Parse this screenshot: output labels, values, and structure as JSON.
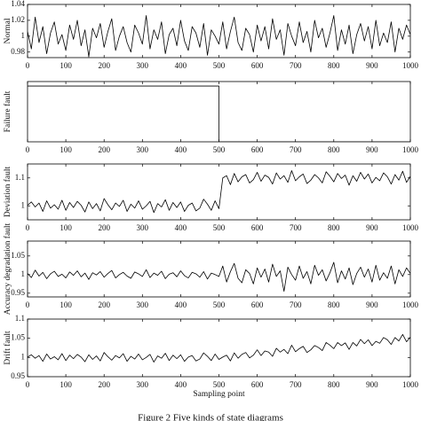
{
  "chart_data": [
    {
      "type": "line",
      "ylabel": "Normal",
      "color": "#000000",
      "xlim": [
        0,
        1000
      ],
      "ylim": [
        0.973,
        1.04
      ],
      "xticks": [
        0,
        100,
        200,
        300,
        400,
        500,
        600,
        700,
        800,
        900,
        1000
      ],
      "yticks": [
        0.98,
        1,
        1.02,
        1.04
      ],
      "x": [
        0,
        10,
        20,
        30,
        40,
        50,
        60,
        70,
        80,
        90,
        100,
        110,
        120,
        130,
        140,
        150,
        160,
        170,
        180,
        190,
        200,
        210,
        220,
        230,
        240,
        250,
        260,
        270,
        280,
        290,
        300,
        310,
        320,
        330,
        340,
        350,
        360,
        370,
        380,
        390,
        400,
        410,
        420,
        430,
        440,
        450,
        460,
        470,
        480,
        490,
        500,
        510,
        520,
        530,
        540,
        550,
        560,
        570,
        580,
        590,
        600,
        610,
        620,
        630,
        640,
        650,
        660,
        670,
        680,
        690,
        700,
        710,
        720,
        730,
        740,
        750,
        760,
        770,
        780,
        790,
        800,
        810,
        820,
        830,
        840,
        850,
        860,
        870,
        880,
        890,
        900,
        910,
        920,
        930,
        940,
        950,
        960,
        970,
        980,
        990,
        1000
      ],
      "values": [
        1.006,
        0.984,
        1.024,
        0.992,
        1.012,
        0.978,
        1.004,
        1.018,
        0.99,
        1.002,
        0.982,
        1.014,
        0.996,
        1.02,
        0.988,
        1.008,
        0.974,
        1.01,
        0.998,
        1.016,
        0.986,
        1.006,
        1.022,
        0.982,
        1,
        1.012,
        0.992,
        0.98,
        1.014,
        1.004,
        0.99,
        1.026,
        0.984,
        1.008,
        0.996,
        1.018,
        0.978,
        1.002,
        1.01,
        0.988,
        1.02,
        0.994,
        0.982,
        1.012,
        1.004,
        0.986,
        1.016,
        0.976,
        1.008,
        1,
        0.99,
        1.018,
        0.984,
        1.006,
        1.024,
        0.992,
        0.982,
        1.01,
        1.002,
        0.98,
        1.014,
        0.994,
        1.012,
        0.984,
        1.022,
        0.996,
        1.008,
        0.976,
        1.016,
        1,
        0.988,
        1.018,
        0.992,
        1.006,
        0.98,
        1.02,
        0.998,
        1.01,
        0.986,
        1.004,
        1.026,
        0.982,
        1.008,
        0.99,
        1.014,
        0.978,
        1.002,
        1.016,
        0.994,
        1.012,
        0.984,
        1.02,
        0.988,
        1.004,
        0.992,
        1.018,
        0.98,
        1.01,
        0.996,
        1.014,
        1.002
      ]
    },
    {
      "type": "line",
      "ylabel": "Failure fault",
      "color": "#000000",
      "xlim": [
        0,
        1000
      ],
      "ylim": [
        0,
        1.08
      ],
      "xticks": [
        0,
        100,
        200,
        300,
        400,
        500,
        600,
        700,
        800,
        900,
        1000
      ],
      "x": [
        0,
        500,
        500,
        1000
      ],
      "values": [
        1,
        1,
        0,
        0
      ]
    },
    {
      "type": "line",
      "ylabel": "Deviation fault",
      "color": "#000000",
      "xlim": [
        0,
        1000
      ],
      "ylim": [
        0.95,
        1.15
      ],
      "xticks": [
        0,
        100,
        200,
        300,
        400,
        500,
        600,
        700,
        800,
        900,
        1000
      ],
      "yticks": [
        1,
        1.1
      ],
      "x": [
        0,
        10,
        20,
        30,
        40,
        50,
        60,
        70,
        80,
        90,
        100,
        110,
        120,
        130,
        140,
        150,
        160,
        170,
        180,
        190,
        200,
        210,
        220,
        230,
        240,
        250,
        260,
        270,
        280,
        290,
        300,
        310,
        320,
        330,
        340,
        350,
        360,
        370,
        380,
        390,
        400,
        410,
        420,
        430,
        440,
        450,
        460,
        470,
        480,
        490,
        500,
        510,
        520,
        530,
        540,
        550,
        560,
        570,
        580,
        590,
        600,
        610,
        620,
        630,
        640,
        650,
        660,
        670,
        680,
        690,
        700,
        710,
        720,
        730,
        740,
        750,
        760,
        770,
        780,
        790,
        800,
        810,
        820,
        830,
        840,
        850,
        860,
        870,
        880,
        890,
        900,
        910,
        920,
        930,
        940,
        950,
        960,
        970,
        980,
        990,
        1000
      ],
      "values": [
        1.002,
        1.014,
        0.996,
        1.01,
        0.98,
        1.018,
        0.992,
        1.004,
        0.988,
        1.02,
        0.984,
        1.012,
        0.994,
        1.016,
        1.002,
        0.978,
        1.014,
        0.99,
        1.008,
        0.982,
        1.026,
        1.004,
        0.986,
        1.01,
        0.998,
        1.02,
        0.98,
        1.006,
        0.992,
        1.018,
        0.988,
        1,
        1.016,
        0.976,
        1.008,
        0.996,
        1.022,
        0.984,
        1.012,
        0.994,
        1.014,
        0.98,
        1.002,
        1.01,
        0.982,
        0.992,
        1.024,
        1.006,
        0.984,
        1.018,
        0.99,
        1.1,
        1.108,
        1.076,
        1.116,
        1.086,
        1.104,
        1.112,
        1.082,
        1.094,
        1.12,
        1.088,
        1.11,
        1.102,
        1.078,
        1.118,
        1.096,
        1.108,
        1.084,
        1.126,
        1.09,
        1.104,
        1.114,
        1.08,
        1.092,
        1.112,
        1.1,
        1.082,
        1.122,
        1.106,
        1.086,
        1.116,
        1.098,
        1.11,
        1.074,
        1.108,
        1.088,
        1.12,
        1.096,
        1.114,
        1.082,
        1.102,
        1.09,
        1.118,
        1.104,
        1.078,
        1.112,
        1.092,
        1.124,
        1.084,
        1.106
      ]
    },
    {
      "type": "line",
      "ylabel": "Accuracy degradation fault",
      "color": "#000000",
      "xlim": [
        0,
        1000
      ],
      "ylim": [
        0.94,
        1.09
      ],
      "xticks": [
        0,
        100,
        200,
        300,
        400,
        500,
        600,
        700,
        800,
        900,
        1000
      ],
      "yticks": [
        0.95,
        1,
        1.05
      ],
      "x": [
        0,
        10,
        20,
        30,
        40,
        50,
        60,
        70,
        80,
        90,
        100,
        110,
        120,
        130,
        140,
        150,
        160,
        170,
        180,
        190,
        200,
        210,
        220,
        230,
        240,
        250,
        260,
        270,
        280,
        290,
        300,
        310,
        320,
        330,
        340,
        350,
        360,
        370,
        380,
        390,
        400,
        410,
        420,
        430,
        440,
        450,
        460,
        470,
        480,
        490,
        500,
        510,
        520,
        530,
        540,
        550,
        560,
        570,
        580,
        590,
        600,
        610,
        620,
        630,
        640,
        650,
        660,
        670,
        680,
        690,
        700,
        710,
        720,
        730,
        740,
        750,
        760,
        770,
        780,
        790,
        800,
        810,
        820,
        830,
        840,
        850,
        860,
        870,
        880,
        890,
        900,
        910,
        920,
        930,
        940,
        950,
        960,
        970,
        980,
        990,
        1000
      ],
      "values": [
        1.003,
        0.992,
        1.012,
        0.996,
        1.006,
        0.989,
        1.002,
        1.009,
        0.995,
        1.001,
        0.991,
        1.007,
        0.998,
        1.01,
        0.994,
        1.004,
        0.987,
        1.005,
        0.999,
        1.008,
        0.993,
        1.003,
        1.011,
        0.991,
        1,
        1.006,
        0.996,
        0.99,
        1.007,
        1.002,
        0.995,
        1.013,
        0.992,
        1.004,
        0.998,
        1.009,
        0.989,
        1.001,
        1.005,
        0.994,
        1.01,
        0.997,
        0.991,
        1.006,
        1.002,
        0.993,
        1.008,
        0.988,
        1.004,
        1,
        0.995,
        1.023,
        0.98,
        1.008,
        1.03,
        0.99,
        0.978,
        1.013,
        1.003,
        0.975,
        1.018,
        0.993,
        1.015,
        0.98,
        1.028,
        0.995,
        1.01,
        0.955,
        1.02,
        1,
        0.985,
        1.023,
        0.99,
        1.008,
        0.975,
        1.025,
        0.998,
        1.013,
        0.983,
        1.005,
        1.033,
        0.978,
        1.01,
        0.988,
        1.018,
        0.973,
        1.003,
        1.02,
        0.993,
        1.015,
        0.98,
        1.025,
        0.985,
        1.005,
        0.99,
        1.023,
        0.975,
        1.013,
        0.995,
        1.018,
        1.003
      ]
    },
    {
      "type": "line",
      "ylabel": "Drift fault",
      "xlabel": "Sampling point",
      "color": "#000000",
      "xlim": [
        0,
        1000
      ],
      "ylim": [
        0.95,
        1.1
      ],
      "xticks": [
        0,
        100,
        200,
        300,
        400,
        500,
        600,
        700,
        800,
        900,
        1000
      ],
      "yticks": [
        0.95,
        1,
        1.05,
        1.1
      ],
      "x": [
        0,
        10,
        20,
        30,
        40,
        50,
        60,
        70,
        80,
        90,
        100,
        110,
        120,
        130,
        140,
        150,
        160,
        170,
        180,
        190,
        200,
        210,
        220,
        230,
        240,
        250,
        260,
        270,
        280,
        290,
        300,
        310,
        320,
        330,
        340,
        350,
        360,
        370,
        380,
        390,
        400,
        410,
        420,
        430,
        440,
        450,
        460,
        470,
        480,
        490,
        500,
        510,
        520,
        530,
        540,
        550,
        560,
        570,
        580,
        590,
        600,
        610,
        620,
        630,
        640,
        650,
        660,
        670,
        680,
        690,
        700,
        710,
        720,
        730,
        740,
        750,
        760,
        770,
        780,
        790,
        800,
        810,
        820,
        830,
        840,
        850,
        860,
        870,
        880,
        890,
        900,
        910,
        920,
        930,
        940,
        950,
        960,
        970,
        980,
        990,
        1000
      ],
      "values": [
        1.001,
        1.007,
        0.998,
        1.005,
        0.99,
        1.009,
        0.996,
        1.002,
        0.994,
        1.01,
        0.992,
        1.006,
        0.997,
        1.008,
        1.001,
        0.989,
        1.007,
        0.995,
        1.004,
        0.991,
        1.013,
        1.002,
        0.993,
        1.005,
        0.999,
        1.01,
        0.99,
        1.003,
        0.996,
        1.009,
        0.994,
        1,
        1.008,
        0.988,
        1.004,
        0.998,
        1.011,
        0.992,
        1.006,
        0.997,
        1.007,
        0.99,
        1.001,
        1.005,
        0.991,
        0.996,
        1.012,
        1.003,
        0.992,
        1.009,
        0.995,
        1.001,
        1.006,
        0.991,
        1.012,
        0.998,
        1.008,
        1.013,
        0.999,
        1.006,
        1.02,
        1.005,
        1.017,
        1.014,
        1.003,
        1.024,
        1.014,
        1.021,
        1.01,
        1.032,
        1.015,
        1.023,
        1.029,
        1.013,
        1.02,
        1.031,
        1.026,
        1.018,
        1.039,
        1.032,
        1.023,
        1.039,
        1.031,
        1.038,
        1.021,
        1.039,
        1.03,
        1.047,
        1.036,
        1.046,
        1.031,
        1.042,
        1.037,
        1.052,
        1.046,
        1.034,
        1.052,
        1.043,
        1.06,
        1.041,
        1.053
      ]
    }
  ],
  "caption": "Figure 2 Five kinds of state diagrams"
}
